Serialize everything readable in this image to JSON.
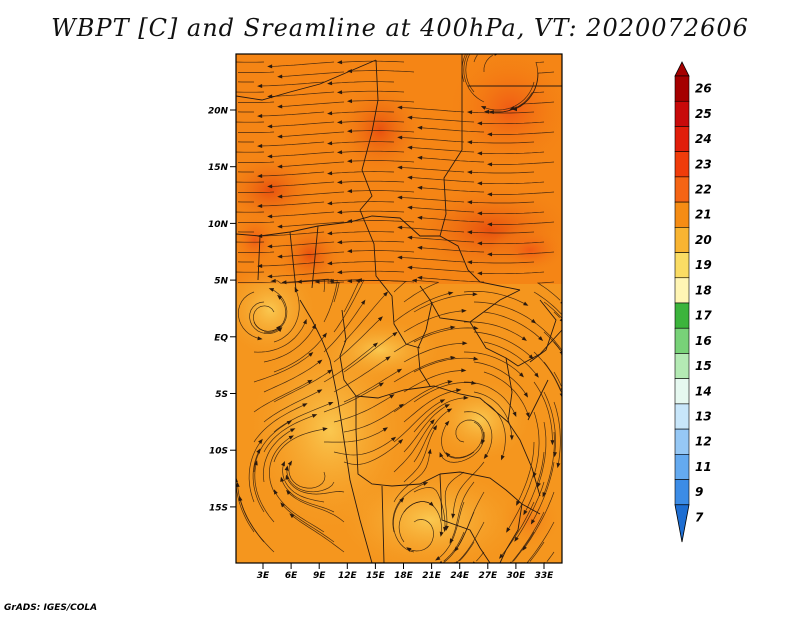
{
  "title": "WBPT [C] and Sreamline at 400hPa, VT: 2020072606",
  "footer": "GrADS: IGES/COLA",
  "map": {
    "lat_labels": [
      "20N",
      "15N",
      "10N",
      "5N",
      "EQ",
      "5S",
      "10S",
      "15S"
    ],
    "lon_labels": [
      "3E",
      "6E",
      "9E",
      "12E",
      "15E",
      "18E",
      "21E",
      "24E",
      "27E",
      "30E",
      "33E"
    ],
    "lat_range": [
      -20,
      25
    ],
    "lon_range": [
      0,
      35
    ]
  },
  "colorbar": {
    "labels": [
      "26",
      "25",
      "24",
      "23",
      "22",
      "21",
      "20",
      "19",
      "18",
      "17",
      "16",
      "15",
      "14",
      "13",
      "12",
      "11",
      "9",
      "7"
    ],
    "colors": [
      "#a50000",
      "#c80a0a",
      "#e11e0a",
      "#f03c0a",
      "#f56414",
      "#f58c14",
      "#f8b432",
      "#fadc64",
      "#fff5b4",
      "#3cb43c",
      "#78d278",
      "#b4eab4",
      "#e6f8f0",
      "#c8e6fa",
      "#96c8f5",
      "#64aaf0",
      "#3c8ce6",
      "#1e6ed2"
    ]
  }
}
